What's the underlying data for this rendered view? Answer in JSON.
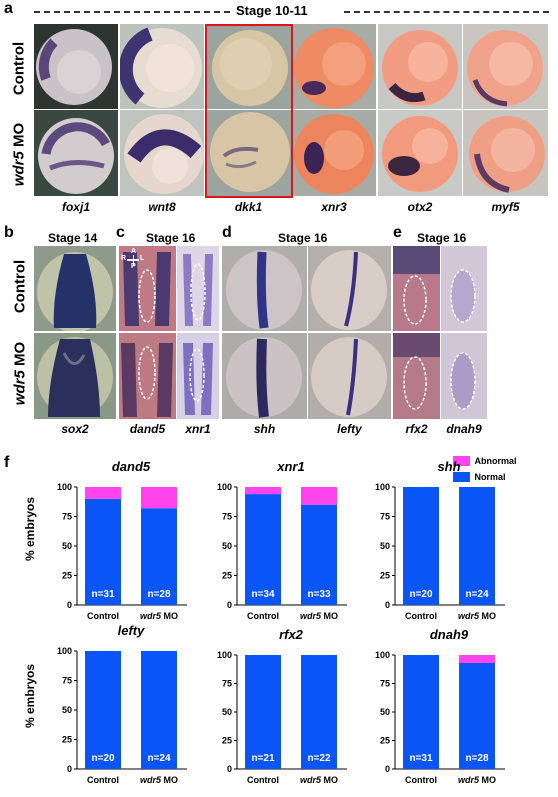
{
  "panel_a": {
    "label": "a",
    "stage": "Stage 10-11",
    "row_labels": {
      "control": "Control",
      "mo_gene": "wdr5",
      "mo_suffix": " MO"
    },
    "genes": [
      "foxj1",
      "wnt8",
      "dkk1",
      "xnr3",
      "otx2",
      "myf5"
    ]
  },
  "panel_b": {
    "label": "b",
    "stage": "Stage 14",
    "genes": [
      "sox2"
    ]
  },
  "panel_c": {
    "label": "c",
    "stage": "Stage 16",
    "genes": [
      "dand5",
      "xnr1"
    ],
    "axis": {
      "a": "A",
      "p": "P",
      "r": "R",
      "l": "L"
    }
  },
  "panel_d": {
    "label": "d",
    "stage": "Stage 16",
    "genes": [
      "shh",
      "lefty"
    ]
  },
  "panel_e": {
    "label": "e",
    "stage": "Stage 16",
    "genes": [
      "rfx2",
      "dnah9"
    ]
  },
  "row_labels_be": {
    "control": "Control",
    "mo_gene": "wdr5",
    "mo_suffix": " MO"
  },
  "panel_f": {
    "label": "f",
    "ylabel": "% embryos",
    "legend": [
      {
        "name": "Abnormal",
        "color": "#ff44ee"
      },
      {
        "name": "Normal",
        "color": "#0a55f5"
      }
    ],
    "colors": {
      "normal": "#0a55f5",
      "abnormal": "#ff44ee"
    }
  },
  "chart_data": [
    {
      "type": "bar",
      "title": "dand5",
      "categories": [
        "Control",
        "wdr5 MO"
      ],
      "ylim": [
        0,
        100
      ],
      "yticks": [
        0,
        25,
        50,
        75,
        100
      ],
      "series": [
        {
          "name": "Normal",
          "values": [
            90,
            82
          ]
        },
        {
          "name": "Abnormal",
          "values": [
            10,
            18
          ]
        }
      ],
      "n_labels": [
        "n=31",
        "n=28"
      ]
    },
    {
      "type": "bar",
      "title": "xnr1",
      "categories": [
        "Control",
        "wdr5 MO"
      ],
      "ylim": [
        0,
        100
      ],
      "yticks": [
        0,
        25,
        50,
        75,
        100
      ],
      "series": [
        {
          "name": "Normal",
          "values": [
            94,
            85
          ]
        },
        {
          "name": "Abnormal",
          "values": [
            6,
            15
          ]
        }
      ],
      "n_labels": [
        "n=34",
        "n=33"
      ]
    },
    {
      "type": "bar",
      "title": "shh",
      "categories": [
        "Control",
        "wdr5 MO"
      ],
      "ylim": [
        0,
        100
      ],
      "yticks": [
        0,
        25,
        50,
        75,
        100
      ],
      "series": [
        {
          "name": "Normal",
          "values": [
            100,
            100
          ]
        },
        {
          "name": "Abnormal",
          "values": [
            0,
            0
          ]
        }
      ],
      "n_labels": [
        "n=20",
        "n=24"
      ]
    },
    {
      "type": "bar",
      "title": "lefty",
      "categories": [
        "Control",
        "wdr5 MO"
      ],
      "ylim": [
        0,
        100
      ],
      "yticks": [
        0,
        25,
        50,
        75,
        100
      ],
      "series": [
        {
          "name": "Normal",
          "values": [
            100,
            100
          ]
        },
        {
          "name": "Abnormal",
          "values": [
            0,
            0
          ]
        }
      ],
      "n_labels": [
        "n=20",
        "n=24"
      ]
    },
    {
      "type": "bar",
      "title": "rfx2",
      "categories": [
        "Control",
        "wdr5 MO"
      ],
      "ylim": [
        0,
        100
      ],
      "yticks": [
        0,
        25,
        50,
        75,
        100
      ],
      "series": [
        {
          "name": "Normal",
          "values": [
            100,
            100
          ]
        },
        {
          "name": "Abnormal",
          "values": [
            0,
            0
          ]
        }
      ],
      "n_labels": [
        "n=21",
        "n=22"
      ]
    },
    {
      "type": "bar",
      "title": "dnah9",
      "categories": [
        "Control",
        "wdr5 MO"
      ],
      "ylim": [
        0,
        100
      ],
      "yticks": [
        0,
        25,
        50,
        75,
        100
      ],
      "series": [
        {
          "name": "Normal",
          "values": [
            100,
            93
          ]
        },
        {
          "name": "Abnormal",
          "values": [
            0,
            7
          ]
        }
      ],
      "n_labels": [
        "n=31",
        "n=28"
      ]
    }
  ]
}
